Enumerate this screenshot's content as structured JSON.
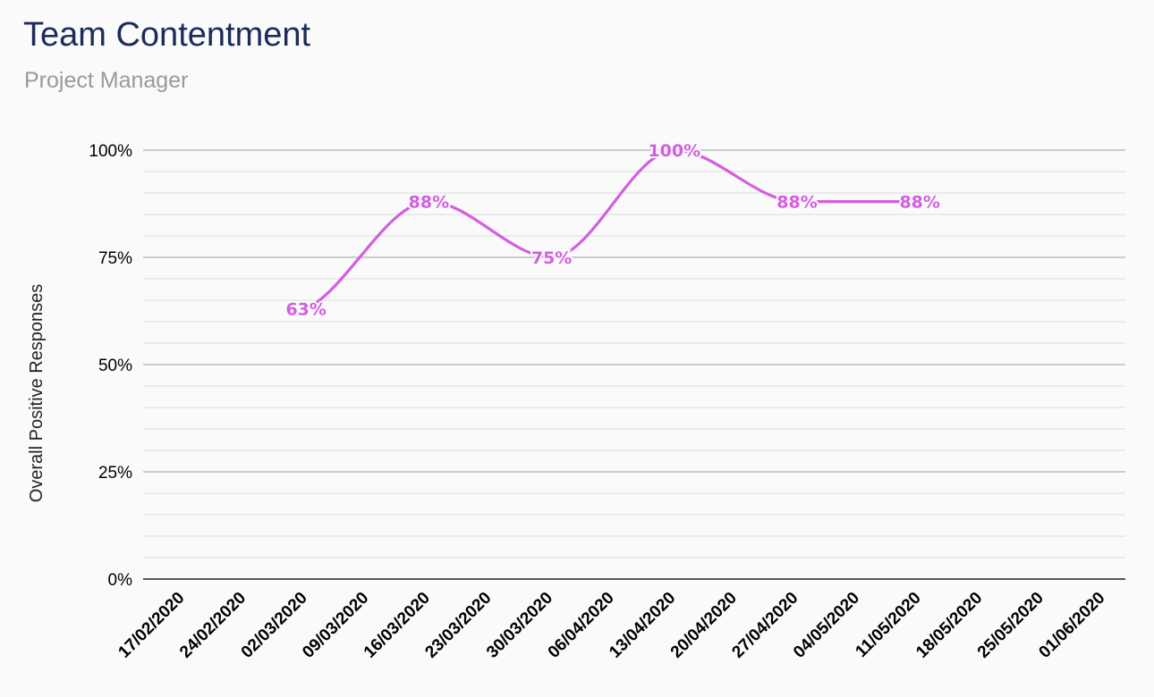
{
  "chart_data": {
    "type": "line",
    "title": "Team Contentment",
    "subtitle": "Project Manager",
    "xlabel": "",
    "ylabel": "Overall Positive Responses",
    "ylim": [
      0,
      100
    ],
    "y_ticks": [
      "0%",
      "25%",
      "50%",
      "75%",
      "100%"
    ],
    "y_tick_values": [
      0,
      25,
      50,
      75,
      100
    ],
    "minor_grid_step": 5,
    "grid": true,
    "legend": "none",
    "categories": [
      "17/02/2020",
      "24/02/2020",
      "02/03/2020",
      "09/03/2020",
      "16/03/2020",
      "23/03/2020",
      "30/03/2020",
      "06/04/2020",
      "13/04/2020",
      "20/04/2020",
      "27/04/2020",
      "04/05/2020",
      "11/05/2020",
      "18/05/2020",
      "25/05/2020",
      "01/06/2020"
    ],
    "series": [
      {
        "name": "",
        "color": "#d35fe0",
        "values": [
          null,
          null,
          63,
          null,
          88,
          null,
          75,
          null,
          100,
          null,
          88,
          null,
          88,
          null,
          null,
          null
        ],
        "labels": [
          null,
          null,
          "63%",
          null,
          "88%",
          null,
          "75%",
          null,
          "100%",
          null,
          "88%",
          null,
          "88%",
          null,
          null,
          null
        ]
      }
    ]
  }
}
